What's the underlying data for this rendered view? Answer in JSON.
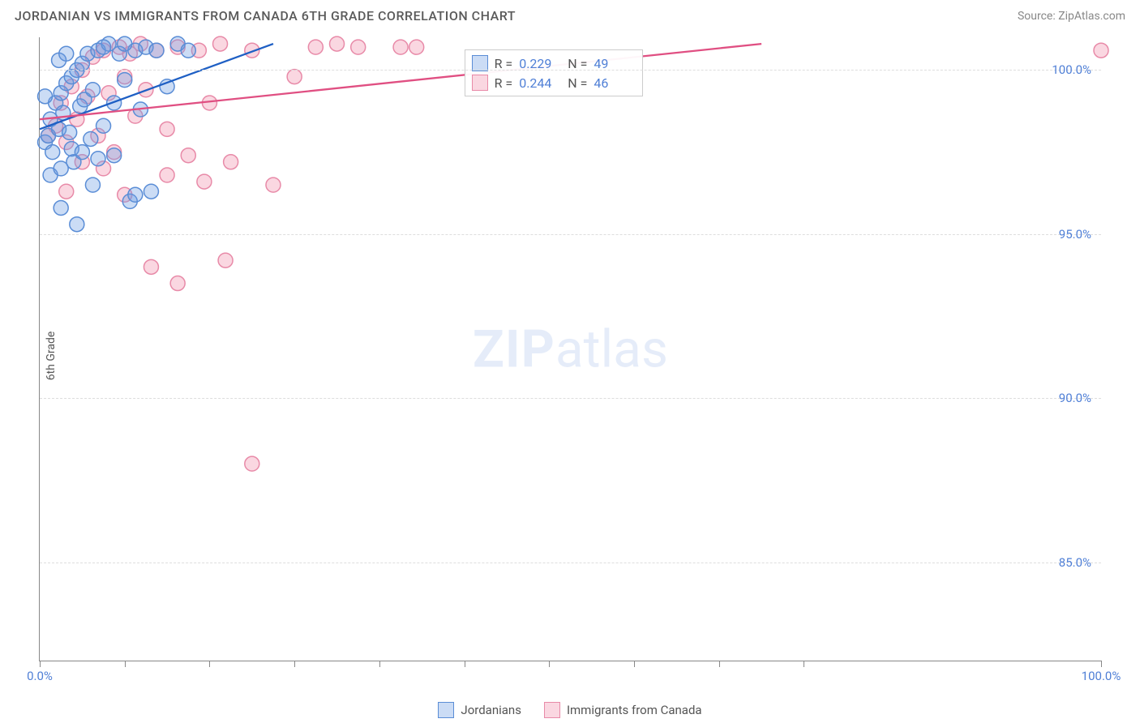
{
  "header": {
    "title": "JORDANIAN VS IMMIGRANTS FROM CANADA 6TH GRADE CORRELATION CHART",
    "source": "Source: ZipAtlas.com"
  },
  "chart": {
    "type": "scatter",
    "y_label": "6th Grade",
    "background_color": "#ffffff",
    "grid_color": "#dddddd",
    "axis_color": "#888888",
    "tick_label_color": "#4f7fd6",
    "label_fontsize": 14,
    "tick_fontsize": 15,
    "marker_radius": 9,
    "marker_stroke_width": 1.5,
    "line_width": 2.3,
    "xlim": [
      0,
      100
    ],
    "ylim": [
      82,
      101
    ],
    "x_ticks": [
      0,
      8,
      16,
      24,
      32,
      40,
      48,
      56,
      64,
      72,
      100
    ],
    "x_tick_labels": {
      "0": "0.0%",
      "100": "100.0%"
    },
    "y_ticks": [
      85,
      90,
      95,
      100
    ],
    "y_tick_labels": {
      "85": "85.0%",
      "90": "90.0%",
      "95": "95.0%",
      "100": "100.0%"
    },
    "watermark": {
      "zip": "ZIP",
      "atlas": "atlas",
      "color": "rgba(79,127,214,0.15)",
      "fontsize": 64
    }
  },
  "series": {
    "jordanians": {
      "label": "Jordanians",
      "fill_color": "rgba(105,155,225,0.35)",
      "stroke_color": "#5a8dd6",
      "line_color": "#1e5fc4",
      "r": "0.229",
      "n": "49",
      "trend": {
        "x1": 0,
        "y1": 98.2,
        "x2": 22,
        "y2": 100.8
      },
      "points": [
        [
          0.5,
          97.8
        ],
        [
          0.8,
          98.0
        ],
        [
          1.0,
          98.5
        ],
        [
          1.2,
          97.5
        ],
        [
          1.5,
          99.0
        ],
        [
          1.8,
          98.2
        ],
        [
          2.0,
          99.3
        ],
        [
          2.2,
          98.7
        ],
        [
          2.5,
          99.6
        ],
        [
          2.8,
          98.1
        ],
        [
          3.0,
          99.8
        ],
        [
          3.2,
          97.2
        ],
        [
          3.5,
          100.0
        ],
        [
          3.8,
          98.9
        ],
        [
          4.0,
          100.2
        ],
        [
          4.2,
          99.1
        ],
        [
          4.5,
          100.5
        ],
        [
          4.8,
          97.9
        ],
        [
          5.0,
          99.4
        ],
        [
          5.5,
          100.6
        ],
        [
          6.0,
          98.3
        ],
        [
          6.5,
          100.8
        ],
        [
          7.0,
          99.0
        ],
        [
          7.5,
          100.5
        ],
        [
          8.0,
          99.7
        ],
        [
          8.5,
          96.0
        ],
        [
          9.0,
          100.6
        ],
        [
          9.5,
          98.8
        ],
        [
          10.0,
          100.7
        ],
        [
          10.5,
          96.3
        ],
        [
          11.0,
          100.6
        ],
        [
          12.0,
          99.5
        ],
        [
          13.0,
          100.8
        ],
        [
          14.0,
          100.6
        ],
        [
          1.0,
          96.8
        ],
        [
          2.0,
          97.0
        ],
        [
          3.0,
          97.6
        ],
        [
          0.5,
          99.2
        ],
        [
          1.8,
          100.3
        ],
        [
          2.5,
          100.5
        ],
        [
          4.0,
          97.5
        ],
        [
          5.0,
          96.5
        ],
        [
          3.5,
          95.3
        ],
        [
          6.0,
          100.7
        ],
        [
          7.0,
          97.4
        ],
        [
          8.0,
          100.8
        ],
        [
          2.0,
          95.8
        ],
        [
          5.5,
          97.3
        ],
        [
          9.0,
          96.2
        ]
      ]
    },
    "canada": {
      "label": "Immigrants from Canada",
      "fill_color": "rgba(240,140,170,0.35)",
      "stroke_color": "#e88aa8",
      "line_color": "#e04f82",
      "r": "0.244",
      "n": "46",
      "trend": {
        "x1": 0,
        "y1": 98.5,
        "x2": 68,
        "y2": 100.8
      },
      "points": [
        [
          0.8,
          98.0
        ],
        [
          1.5,
          98.3
        ],
        [
          2.0,
          99.0
        ],
        [
          2.5,
          97.8
        ],
        [
          3.0,
          99.5
        ],
        [
          3.5,
          98.5
        ],
        [
          4.0,
          100.0
        ],
        [
          4.5,
          99.2
        ],
        [
          5.0,
          100.4
        ],
        [
          5.5,
          98.0
        ],
        [
          6.0,
          100.6
        ],
        [
          6.5,
          99.3
        ],
        [
          7.0,
          97.5
        ],
        [
          7.5,
          100.7
        ],
        [
          8.0,
          99.8
        ],
        [
          8.5,
          100.5
        ],
        [
          9.0,
          98.6
        ],
        [
          9.5,
          100.8
        ],
        [
          10.0,
          99.4
        ],
        [
          11.0,
          100.6
        ],
        [
          12.0,
          98.2
        ],
        [
          13.0,
          100.7
        ],
        [
          14.0,
          97.4
        ],
        [
          15.0,
          100.6
        ],
        [
          16.0,
          99.0
        ],
        [
          17.0,
          100.8
        ],
        [
          18.0,
          97.2
        ],
        [
          12.0,
          96.8
        ],
        [
          15.5,
          96.6
        ],
        [
          22.0,
          96.5
        ],
        [
          26.0,
          100.7
        ],
        [
          30.0,
          100.7
        ],
        [
          34.0,
          100.7
        ],
        [
          35.5,
          100.7
        ],
        [
          10.5,
          94.0
        ],
        [
          17.5,
          94.2
        ],
        [
          13.0,
          93.5
        ],
        [
          20.0,
          88.0
        ],
        [
          6.0,
          97.0
        ],
        [
          8.0,
          96.2
        ],
        [
          4.0,
          97.2
        ],
        [
          2.5,
          96.3
        ],
        [
          100.0,
          100.6
        ],
        [
          24.0,
          99.8
        ],
        [
          20.0,
          100.6
        ],
        [
          28.0,
          100.8
        ]
      ]
    }
  },
  "stats_box": {
    "left_pct": 40,
    "top_pct": 2,
    "r_label": "R =",
    "n_label": "N ="
  },
  "legend": {
    "order": [
      "jordanians",
      "canada"
    ]
  }
}
